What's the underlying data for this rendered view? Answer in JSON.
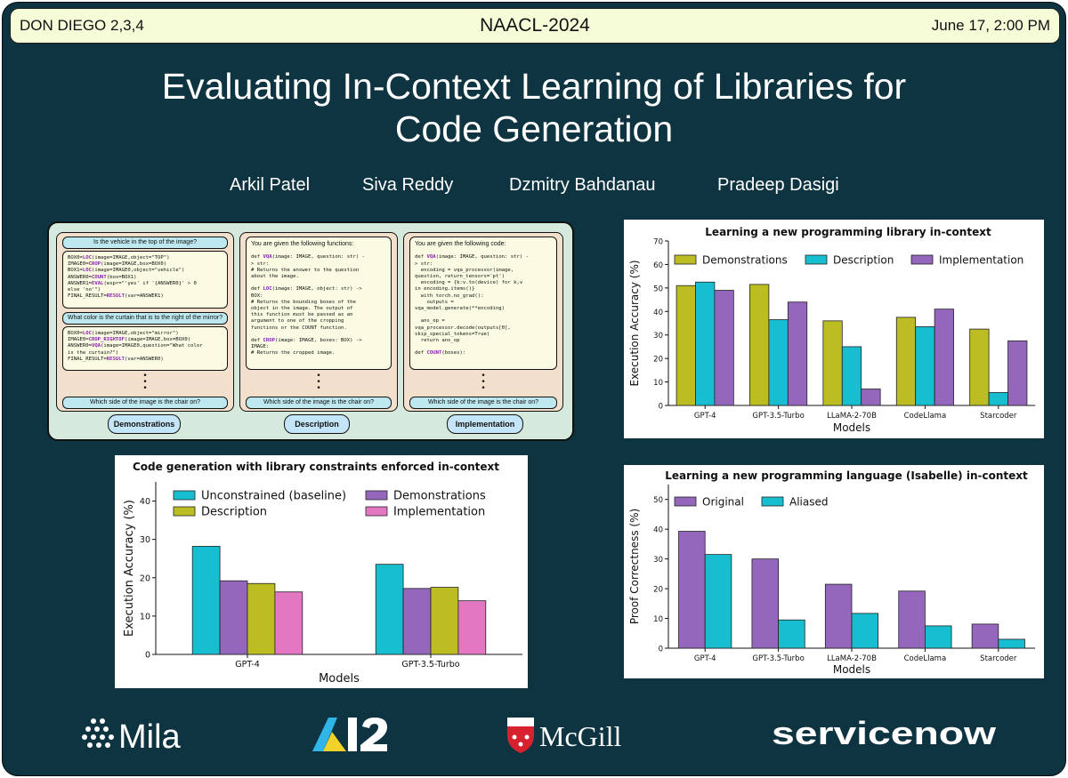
{
  "header": {
    "left": "DON DIEGO 2,3,4",
    "center": "NAACL-2024",
    "right": "June 17, 2:00 PM"
  },
  "title": {
    "line1": "Evaluating In-Context Learning of Libraries for",
    "line2": "Code Generation"
  },
  "authors": [
    "Arkil Patel",
    "Siva Reddy",
    "Dzmitry Bahdanau",
    "Pradeep Dasigi"
  ],
  "figure": {
    "panels": [
      {
        "label": "Demonstrations",
        "q1": "Is the vehicle in the top of the image?",
        "code1": [
          "BOX0=<b>LOC</b>(image=IMAGE,object=\"TOP\")",
          "IMAGE0=<b>CROP</b>(image=IMAGE,box=BOX0)",
          "BOX1=<b>LOC</b>(image=IMAGE0,object=\"vehicle\")",
          "ANSWER0=<b>COUNT</b>(box=BOX1)",
          "ANSWER1=<b>EVAL</b>(expr=\"'yes' if '{ANSWER0}' > 0",
          "else 'no'\")",
          "FINAL_RESULT=<b>RESULT</b>(var=ANSWER1)"
        ],
        "q2": "What color is the curtain that is to the right of the mirror?",
        "code2": [
          "BOX0=<b>LOC</b>(image=IMAGE,object=\"mirror\")",
          "IMAGE0=<b>CROP_RIGHTOF</b>(image=IMAGE,box=BOX0)",
          "ANSWER0=<b>VQA</b>(image=IMAGE0,question=\"What color",
          "is the curtain?\")",
          "FINAL_RESULT=<b>RESULT</b>(var=ANSWER0)"
        ],
        "bottom": "Which side of the image is the chair on?"
      },
      {
        "label": "Description",
        "intro": "You are given the following functions:",
        "code": [
          "def <b>VQA</b>(image: IMAGE, question: str) -",
          "> str:",
          "# Returns the answer to the question",
          "about the image.",
          "",
          "def <b>LOC</b>(image: IMAGE, object: str) ->",
          "BOX:",
          "# Returns the bounding boxes of the",
          "object in the image. The output of",
          "this function must be passed as an",
          "argument to one of the cropping",
          "functions or the COUNT function.",
          "",
          "def <b>CROP</b>(image: IMAGE, boxes: BOX) ->",
          "IMAGE:",
          "# Returns the cropped image."
        ],
        "bottom": "Which side of the image is the chair on?"
      },
      {
        "label": "Implementation",
        "intro": "You are given the following code:",
        "code": [
          "def <b>VQA</b>(image: IMAGE, question: str) -",
          "> str:",
          "  encoding = vqa_processor(image,",
          "question, return_tensors='pt')",
          "  encoding = {k:v.to(device) for k,v",
          "in encoding.items()}",
          "  with torch.no_grad():",
          "    outputs =",
          "vqa_model.generate(**encoding)",
          "",
          "  ans_op =",
          "vqa_processor.decode(outputs[0],",
          "skip_special_tokens=True)",
          "  return ans_op",
          "",
          "def <b>COUNT</b>(boxes):"
        ],
        "bottom": "Which side of the image is the chair on?"
      }
    ]
  },
  "chart_data": [
    {
      "type": "bar",
      "title": "Learning a new programming library in-context",
      "categories": [
        "GPT-4",
        "GPT-3.5-Turbo",
        "LLaMA-2-70B",
        "CodeLlama",
        "Starcoder"
      ],
      "series": [
        {
          "name": "Demonstrations",
          "color": "#bcbd22",
          "values": [
            51,
            51.5,
            36,
            37.5,
            32.5
          ]
        },
        {
          "name": "Description",
          "color": "#17becf",
          "values": [
            52.5,
            36.5,
            25,
            33.5,
            5.5
          ]
        },
        {
          "name": "Implementation",
          "color": "#9467bd",
          "values": [
            49,
            44,
            7,
            41,
            27.5
          ]
        }
      ],
      "xlabel": "Models",
      "ylabel": "Execution Accuracy (%)",
      "ylim": [
        0,
        70
      ],
      "yticks": [
        0,
        10,
        20,
        30,
        40,
        50,
        60,
        70
      ],
      "legend": "top, 3 columns",
      "grid": false
    },
    {
      "type": "bar",
      "title": "Code generation with library constraints enforced in-context",
      "categories": [
        "GPT-4",
        "GPT-3.5-Turbo"
      ],
      "series": [
        {
          "name": "Unconstrained (baseline)",
          "color": "#17becf",
          "values": [
            28.2,
            23.5
          ]
        },
        {
          "name": "Demonstrations",
          "color": "#9467bd",
          "values": [
            19.2,
            17.2
          ]
        },
        {
          "name": "Description",
          "color": "#bcbd22",
          "values": [
            18.5,
            17.5
          ]
        },
        {
          "name": "Implementation",
          "color": "#e377c2",
          "values": [
            16.3,
            14
          ]
        }
      ],
      "xlabel": "Models",
      "ylabel": "Execution Accuracy (%)",
      "ylim": [
        0,
        45
      ],
      "yticks": [
        0,
        10,
        20,
        30,
        40
      ],
      "legend": "top, 2 columns",
      "grid": false
    },
    {
      "type": "bar",
      "title": "Learning a new programming language (Isabelle) in-context",
      "categories": [
        "GPT-4",
        "GPT-3.5-Turbo",
        "LLaMA-2-70B",
        "CodeLlama",
        "Starcoder"
      ],
      "series": [
        {
          "name": "Original",
          "color": "#9467bd",
          "values": [
            39.3,
            30,
            21.5,
            19.2,
            8.1
          ]
        },
        {
          "name": "Aliased",
          "color": "#17becf",
          "values": [
            31.5,
            9.5,
            11.7,
            7.5,
            3
          ]
        }
      ],
      "xlabel": "Models",
      "ylabel": "Proof Correctness (%)",
      "ylim": [
        0,
        55
      ],
      "yticks": [
        0,
        10,
        20,
        30,
        40,
        50
      ],
      "legend": "top-left, 2 columns",
      "grid": false
    }
  ],
  "logos": {
    "mila": "Mila",
    "ai2": "AI2",
    "mcgill": "McGill",
    "servicenow": "servicenow"
  }
}
